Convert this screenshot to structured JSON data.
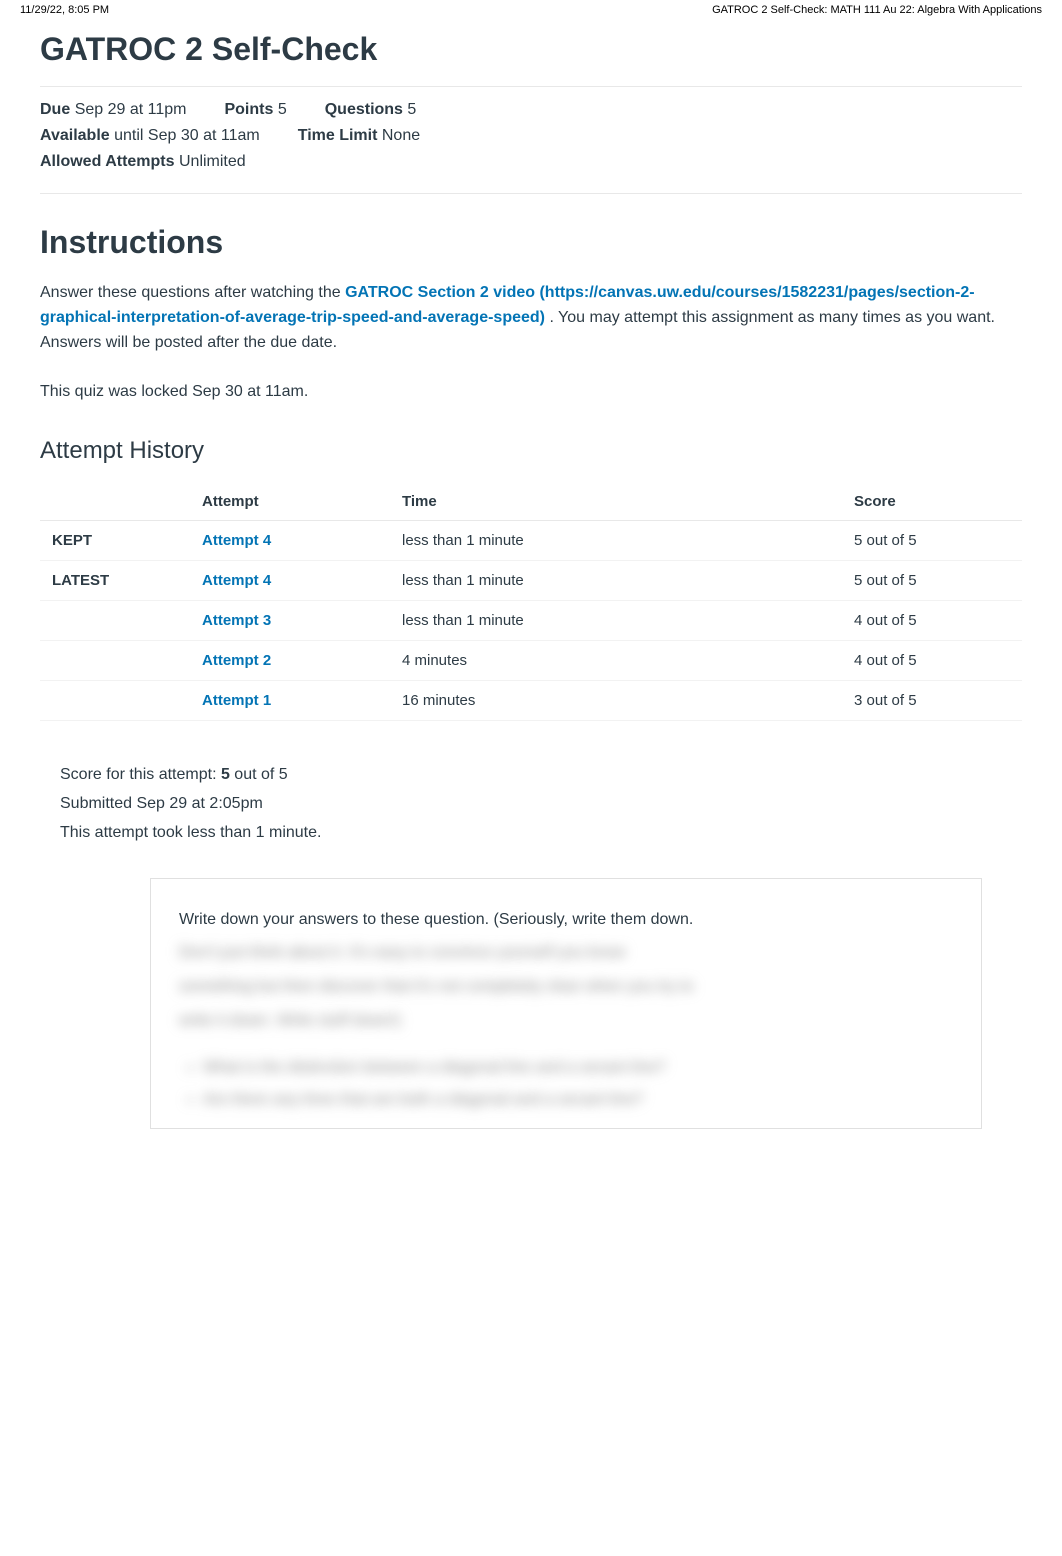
{
  "print_header": {
    "left": "11/29/22, 8:05 PM",
    "right": "GATROC 2 Self-Check: MATH 111 Au 22: Algebra With Applications"
  },
  "page_title": "GATROC 2 Self-Check",
  "details": {
    "due_label": "Due",
    "due_value": "Sep 29 at 11pm",
    "points_label": "Points",
    "points_value": "5",
    "questions_label": "Questions",
    "questions_value": "5",
    "available_label": "Available",
    "available_value": "until Sep 30 at 11am",
    "time_limit_label": "Time Limit",
    "time_limit_value": "None",
    "allowed_attempts_label": "Allowed Attempts",
    "allowed_attempts_value": "Unlimited"
  },
  "instructions": {
    "title": "Instructions",
    "text_before_link": "Answer these questions after watching the ",
    "link_text": "GATROC Section 2 video (https://canvas.uw.edu/courses/1582231/pages/section-2-graphical-interpretation-of-average-trip-speed-and-average-speed)",
    "text_after_link": " . You may attempt this assignment as many times as you want. Answers will be posted after the due date."
  },
  "locked_text": "This quiz was locked Sep 30 at 11am.",
  "attempt_history": {
    "title": "Attempt History",
    "headers": [
      "",
      "Attempt",
      "Time",
      "Score"
    ],
    "rows": [
      {
        "status": "KEPT",
        "attempt": "Attempt 4",
        "time": "less than 1 minute",
        "score": "5 out of 5"
      },
      {
        "status": "LATEST",
        "attempt": "Attempt 4",
        "time": "less than 1 minute",
        "score": "5 out of 5"
      },
      {
        "status": "",
        "attempt": "Attempt 3",
        "time": "less than 1 minute",
        "score": "4 out of 5"
      },
      {
        "status": "",
        "attempt": "Attempt 2",
        "time": "4 minutes",
        "score": "4 out of 5"
      },
      {
        "status": "",
        "attempt": "Attempt 1",
        "time": "16 minutes",
        "score": "3 out of 5"
      }
    ]
  },
  "score_summary": {
    "line1_prefix": "Score for this attempt: ",
    "line1_score": "5",
    "line1_suffix": " out of 5",
    "line2": "Submitted Sep 29 at 2:05pm",
    "line3": "This attempt took less than 1 minute."
  },
  "question": {
    "visible_text": "Write down your answers to these question. (Seriously, write them down.",
    "blurred1": "Don't just think about it. It's easy to convince yourself you know",
    "blurred2": "something but then discover that it's not completely clear when you try to",
    "blurred3": "write it down. Write stuff down!)",
    "blurred_bullet1": "What is the distinction between a diagonal line and a secant line?",
    "blurred_bullet2": "Are there any lines that are both a diagonal and a secant line?"
  }
}
